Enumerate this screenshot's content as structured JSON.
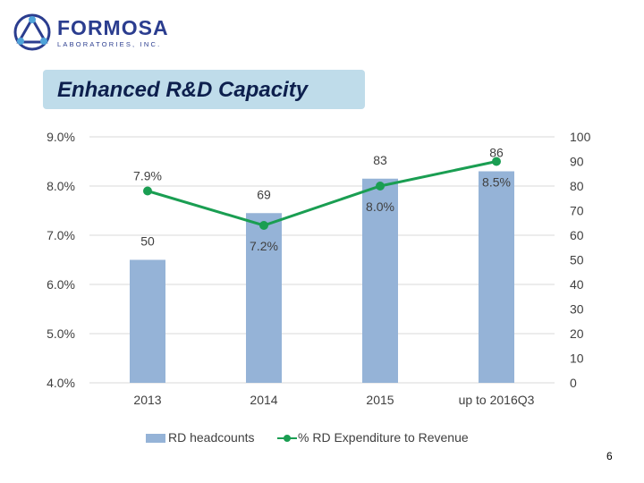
{
  "logo": {
    "name": "FORMOSA",
    "sub": "LABORATORIES, INC."
  },
  "title": "Enhanced R&D Capacity",
  "page_number": "6",
  "colors": {
    "bar": "#95b3d7",
    "line": "#1a9e52",
    "title_bg": "#bfdcea",
    "brand": "#2b3d8f"
  },
  "chart_data": {
    "type": "bar+line",
    "categories": [
      "2013",
      "2014",
      "2015",
      "up to 2016Q3"
    ],
    "series": [
      {
        "name": "RD headcounts",
        "type": "bar",
        "axis": "right",
        "values": [
          50,
          69,
          83,
          86
        ],
        "labels": [
          "50",
          "69",
          "83",
          "86"
        ]
      },
      {
        "name": "% RD Expenditure to Revenue",
        "type": "line",
        "axis": "left",
        "values": [
          7.9,
          7.2,
          8.0,
          8.5
        ],
        "labels": [
          "7.9%",
          "7.2%",
          "8.0%",
          "8.5%"
        ]
      }
    ],
    "left_axis": {
      "min": 4.0,
      "max": 9.0,
      "ticks": [
        "4.0%",
        "5.0%",
        "6.0%",
        "7.0%",
        "8.0%",
        "9.0%"
      ]
    },
    "right_axis": {
      "min": 0,
      "max": 100,
      "ticks": [
        "0",
        "10",
        "20",
        "30",
        "40",
        "50",
        "60",
        "70",
        "80",
        "90",
        "100"
      ]
    },
    "grid": true,
    "legend_position": "bottom"
  }
}
